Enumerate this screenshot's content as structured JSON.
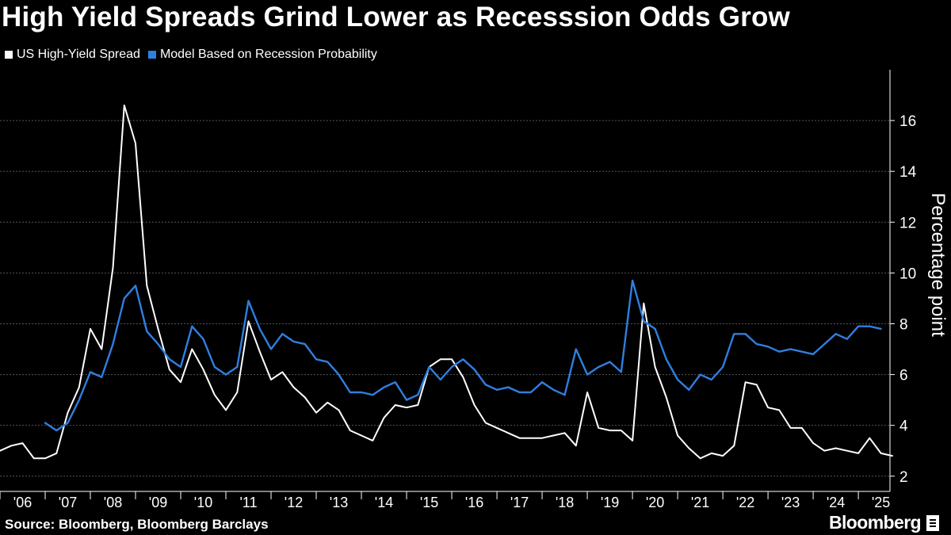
{
  "title": "High Yield Spreads Grind Lower as Recesssion Odds Grow",
  "legend": [
    {
      "label": "US High-Yield Spread",
      "color": "#ffffff"
    },
    {
      "label": "Model Based on Recession Probability",
      "color": "#2f7fe0"
    }
  ],
  "footer": {
    "source": "Source: Bloomberg, Bloomberg Barclays",
    "brand": "Bloomberg"
  },
  "chart_data": {
    "type": "line",
    "ylabel": "Percentage point",
    "ylim": [
      1.4,
      18
    ],
    "yticks": [
      2,
      4,
      6,
      8,
      10,
      12,
      14,
      16
    ],
    "xlim": [
      2006.0,
      2025.7
    ],
    "xtick_labels": [
      "'06",
      "'07",
      "'08",
      "'09",
      "'10",
      "'11",
      "'12",
      "'13",
      "'14",
      "'15",
      "'16",
      "'17",
      "'18",
      "'19",
      "'20",
      "'21",
      "'22",
      "'23",
      "'24",
      "'25"
    ],
    "grid": true,
    "legend_position": "top-left",
    "series": [
      {
        "name": "US High-Yield Spread",
        "color": "#ffffff",
        "points": [
          [
            2006.0,
            3.0
          ],
          [
            2006.25,
            3.2
          ],
          [
            2006.5,
            3.3
          ],
          [
            2006.75,
            2.7
          ],
          [
            2007.0,
            2.7
          ],
          [
            2007.25,
            2.9
          ],
          [
            2007.5,
            4.5
          ],
          [
            2007.75,
            5.5
          ],
          [
            2008.0,
            7.8
          ],
          [
            2008.25,
            7.0
          ],
          [
            2008.5,
            10.2
          ],
          [
            2008.75,
            16.6
          ],
          [
            2009.0,
            15.1
          ],
          [
            2009.25,
            9.5
          ],
          [
            2009.5,
            7.8
          ],
          [
            2009.75,
            6.2
          ],
          [
            2010.0,
            5.7
          ],
          [
            2010.25,
            7.0
          ],
          [
            2010.5,
            6.2
          ],
          [
            2010.75,
            5.2
          ],
          [
            2011.0,
            4.6
          ],
          [
            2011.25,
            5.3
          ],
          [
            2011.5,
            8.1
          ],
          [
            2011.75,
            6.9
          ],
          [
            2012.0,
            5.8
          ],
          [
            2012.25,
            6.1
          ],
          [
            2012.5,
            5.5
          ],
          [
            2012.75,
            5.1
          ],
          [
            2013.0,
            4.5
          ],
          [
            2013.25,
            4.9
          ],
          [
            2013.5,
            4.6
          ],
          [
            2013.75,
            3.8
          ],
          [
            2014.0,
            3.6
          ],
          [
            2014.25,
            3.4
          ],
          [
            2014.5,
            4.3
          ],
          [
            2014.75,
            4.8
          ],
          [
            2015.0,
            4.7
          ],
          [
            2015.25,
            4.8
          ],
          [
            2015.5,
            6.3
          ],
          [
            2015.75,
            6.6
          ],
          [
            2016.0,
            6.6
          ],
          [
            2016.25,
            5.9
          ],
          [
            2016.5,
            4.8
          ],
          [
            2016.75,
            4.1
          ],
          [
            2017.0,
            3.9
          ],
          [
            2017.25,
            3.7
          ],
          [
            2017.5,
            3.5
          ],
          [
            2017.75,
            3.5
          ],
          [
            2018.0,
            3.5
          ],
          [
            2018.25,
            3.6
          ],
          [
            2018.5,
            3.7
          ],
          [
            2018.75,
            3.2
          ],
          [
            2019.0,
            5.3
          ],
          [
            2019.25,
            3.9
          ],
          [
            2019.5,
            3.8
          ],
          [
            2019.75,
            3.8
          ],
          [
            2020.0,
            3.4
          ],
          [
            2020.25,
            8.8
          ],
          [
            2020.5,
            6.3
          ],
          [
            2020.75,
            5.1
          ],
          [
            2021.0,
            3.6
          ],
          [
            2021.25,
            3.1
          ],
          [
            2021.5,
            2.7
          ],
          [
            2021.75,
            2.9
          ],
          [
            2022.0,
            2.8
          ],
          [
            2022.25,
            3.2
          ],
          [
            2022.5,
            5.7
          ],
          [
            2022.75,
            5.6
          ],
          [
            2023.0,
            4.7
          ],
          [
            2023.25,
            4.6
          ],
          [
            2023.5,
            3.9
          ],
          [
            2023.75,
            3.9
          ],
          [
            2024.0,
            3.3
          ],
          [
            2024.25,
            3.0
          ],
          [
            2024.5,
            3.1
          ],
          [
            2024.75,
            3.0
          ],
          [
            2025.0,
            2.9
          ],
          [
            2025.25,
            3.5
          ],
          [
            2025.5,
            2.9
          ],
          [
            2025.75,
            2.8
          ]
        ]
      },
      {
        "name": "Model Based on Recession Probability",
        "color": "#2f7fe0",
        "points": [
          [
            2007.0,
            4.1
          ],
          [
            2007.25,
            3.8
          ],
          [
            2007.5,
            4.1
          ],
          [
            2007.75,
            5.0
          ],
          [
            2008.0,
            6.1
          ],
          [
            2008.25,
            5.9
          ],
          [
            2008.5,
            7.2
          ],
          [
            2008.75,
            9.0
          ],
          [
            2009.0,
            9.5
          ],
          [
            2009.25,
            7.7
          ],
          [
            2009.5,
            7.2
          ],
          [
            2009.75,
            6.6
          ],
          [
            2010.0,
            6.3
          ],
          [
            2010.25,
            7.9
          ],
          [
            2010.5,
            7.4
          ],
          [
            2010.75,
            6.3
          ],
          [
            2011.0,
            6.0
          ],
          [
            2011.25,
            6.3
          ],
          [
            2011.5,
            8.9
          ],
          [
            2011.75,
            7.8
          ],
          [
            2012.0,
            7.0
          ],
          [
            2012.25,
            7.6
          ],
          [
            2012.5,
            7.3
          ],
          [
            2012.75,
            7.2
          ],
          [
            2013.0,
            6.6
          ],
          [
            2013.25,
            6.5
          ],
          [
            2013.5,
            6.0
          ],
          [
            2013.75,
            5.3
          ],
          [
            2014.0,
            5.3
          ],
          [
            2014.25,
            5.2
          ],
          [
            2014.5,
            5.5
          ],
          [
            2014.75,
            5.7
          ],
          [
            2015.0,
            5.0
          ],
          [
            2015.25,
            5.2
          ],
          [
            2015.5,
            6.3
          ],
          [
            2015.75,
            5.8
          ],
          [
            2016.0,
            6.3
          ],
          [
            2016.25,
            6.6
          ],
          [
            2016.5,
            6.2
          ],
          [
            2016.75,
            5.6
          ],
          [
            2017.0,
            5.4
          ],
          [
            2017.25,
            5.5
          ],
          [
            2017.5,
            5.3
          ],
          [
            2017.75,
            5.3
          ],
          [
            2018.0,
            5.7
          ],
          [
            2018.25,
            5.4
          ],
          [
            2018.5,
            5.2
          ],
          [
            2018.75,
            7.0
          ],
          [
            2019.0,
            6.0
          ],
          [
            2019.25,
            6.3
          ],
          [
            2019.5,
            6.5
          ],
          [
            2019.75,
            6.1
          ],
          [
            2020.0,
            9.7
          ],
          [
            2020.25,
            8.1
          ],
          [
            2020.5,
            7.8
          ],
          [
            2020.75,
            6.6
          ],
          [
            2021.0,
            5.8
          ],
          [
            2021.25,
            5.4
          ],
          [
            2021.5,
            6.0
          ],
          [
            2021.75,
            5.8
          ],
          [
            2022.0,
            6.3
          ],
          [
            2022.25,
            7.6
          ],
          [
            2022.5,
            7.6
          ],
          [
            2022.75,
            7.2
          ],
          [
            2023.0,
            7.1
          ],
          [
            2023.25,
            6.9
          ],
          [
            2023.5,
            7.0
          ],
          [
            2023.75,
            6.9
          ],
          [
            2024.0,
            6.8
          ],
          [
            2024.25,
            7.2
          ],
          [
            2024.5,
            7.6
          ],
          [
            2024.75,
            7.4
          ],
          [
            2025.0,
            7.9
          ],
          [
            2025.25,
            7.9
          ],
          [
            2025.5,
            7.8
          ]
        ]
      }
    ]
  }
}
